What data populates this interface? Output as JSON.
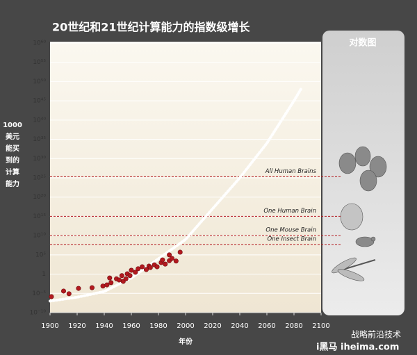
{
  "chart_data": {
    "type": "scatter",
    "title": "20世纪和21世纪计算能力的指数级增长",
    "panel_title": "对数图",
    "xlabel": "年份",
    "ylabel_lines": [
      "1000",
      "美元",
      "能买",
      "到的",
      "计算",
      "能力"
    ],
    "log_y": true,
    "grid": true,
    "xlim": [
      1900,
      2100
    ],
    "xticks": [
      1900,
      1920,
      1940,
      1960,
      1980,
      2000,
      2020,
      2040,
      2060,
      2080,
      2100
    ],
    "ylim": [
      1e-10,
      1e+60
    ],
    "yticks": [
      {
        "value": 1e-10,
        "label": "10⁻¹⁰"
      },
      {
        "value": 1e-05,
        "label": "10⁻⁵"
      },
      1,
      {
        "value": 100000.0,
        "label": "10⁵"
      },
      {
        "value": 10000000000.0,
        "label": "10¹⁰"
      },
      {
        "value": 1000000000000000.0,
        "label": "10¹⁵"
      },
      {
        "value": 1e+20,
        "label": "10²⁰"
      },
      {
        "value": 1e+25,
        "label": "10²⁵"
      },
      {
        "value": 1e+30,
        "label": "10³⁰"
      },
      {
        "value": 1e+35,
        "label": "10³⁵"
      },
      {
        "value": 1e+40,
        "label": "10⁴⁰"
      },
      {
        "value": 1e+45,
        "label": "10⁴⁵"
      },
      {
        "value": 1e+50,
        "label": "10⁵⁰"
      },
      {
        "value": 1e+55,
        "label": "10⁵⁵"
      },
      {
        "value": 1e+60,
        "label": "10⁶⁰"
      }
    ],
    "series": [
      {
        "color": "#b3191f",
        "x": [
          1901,
          1910,
          1914,
          1921,
          1931,
          1939,
          1942,
          1944,
          1945,
          1949,
          1951,
          1953,
          1954,
          1956,
          1957,
          1959,
          1960,
          1963,
          1965,
          1968,
          1971,
          1973,
          1974,
          1977,
          1979,
          1982,
          1983,
          1985,
          1988,
          1988,
          1990,
          1993,
          1996
        ],
        "values": [
          1.4e-06,
          4e-05,
          8e-06,
          0.0002,
          0.0003,
          0.0008,
          0.0016,
          0.1,
          0.006,
          0.06,
          0.03,
          0.4,
          0.013,
          0.06,
          1.2,
          0.4,
          10,
          3,
          25,
          80,
          15,
          120,
          50,
          250,
          80,
          1000,
          5000,
          400,
          3000,
          100000,
          12000,
          2500,
          500000
        ]
      },
      {
        "color": "#ffffff",
        "x": [
          1900,
          1920,
          1940,
          1960,
          1980,
          2000,
          2020,
          2040,
          2060,
          2080,
          2085
        ],
        "values": [
          1e-07,
          1e-06,
          3e-05,
          0.1,
          10000.0,
          1000000000.0,
          1e+17,
          1e+25,
          1e+34,
          1e+45,
          1e+48
        ]
      }
    ],
    "reference_lines": [
      {
        "label": "All Human Brains",
        "value": 2e+25,
        "color": "#b3191f"
      },
      {
        "label": "One Human Brain",
        "value": 1000000000000000.0,
        "color": "#b3191f"
      },
      {
        "label": "One Mouse Brain",
        "value": 10000000000.0,
        "color": "#b3191f"
      },
      {
        "label": "One Insect Brain",
        "value": 50000000.0,
        "color": "#b3191f"
      }
    ],
    "watermark": [
      "战略前沿技术",
      "i黑马 iheima.com"
    ]
  }
}
